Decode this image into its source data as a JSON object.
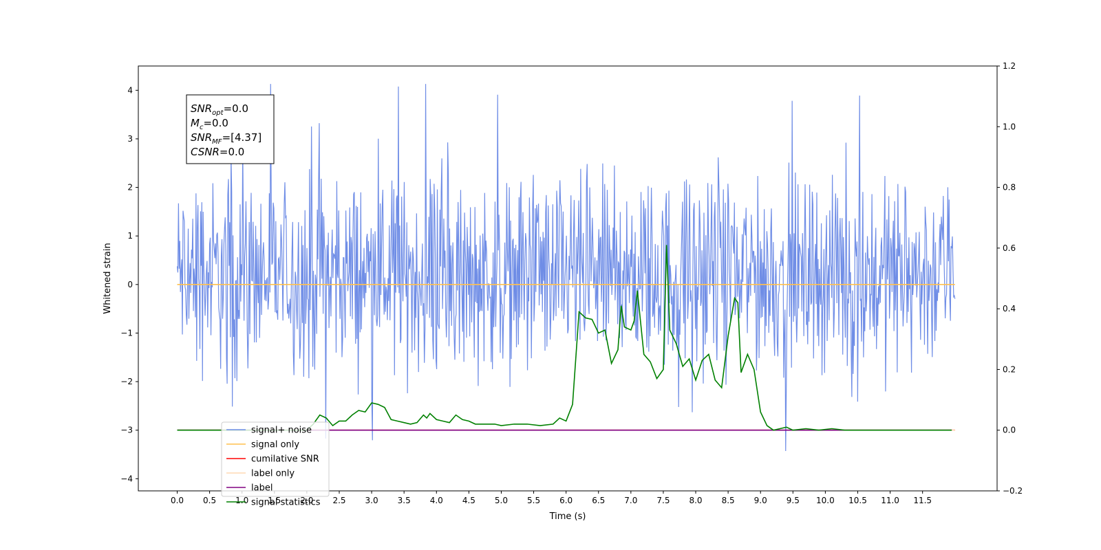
{
  "chart_data": {
    "type": "line",
    "xlabel": "Time (s)",
    "ylabel": "Whitened strain",
    "xlim": [
      -0.6,
      12.65
    ],
    "ylim": [
      -4.25,
      4.5
    ],
    "y2lim": [
      -0.2,
      1.2
    ],
    "grid": false,
    "legend_position": "lower-left",
    "xticks": [
      "0.0",
      "0.5",
      "1.0",
      "1.5",
      "2.0",
      "2.5",
      "3.0",
      "3.5",
      "4.0",
      "4.5",
      "5.0",
      "5.5",
      "6.0",
      "6.5",
      "7.0",
      "7.5",
      "8.0",
      "8.5",
      "9.0",
      "9.5",
      "10.0",
      "10.5",
      "11.0",
      "11.5"
    ],
    "yticks": [
      "4",
      "3",
      "2",
      "1",
      "0",
      "−1",
      "−2",
      "−3",
      "−4"
    ],
    "y2ticks": [
      "1.2",
      "1.0",
      "0.8",
      "0.6",
      "0.4",
      "0.2",
      "0.0",
      "−0.2"
    ],
    "annotation": {
      "lines": [
        {
          "base": "SNR",
          "sub": "opt",
          "value": "=0.0"
        },
        {
          "base": "M",
          "sub": "c",
          "value": "=0.0"
        },
        {
          "base": "SNR",
          "sub": "MF",
          "value": "=[4.37]"
        },
        {
          "base": "CSNR",
          "sub": "",
          "value": "=0.0"
        }
      ]
    },
    "series": [
      {
        "name": "signal+ noise",
        "color": "#6f8de6",
        "axis": "left",
        "x_range": [
          0.0,
          12.0
        ],
        "n_samples": 1200,
        "mean": 0.2,
        "spread": 0.95,
        "min": -3.85,
        "max": 4.13
      },
      {
        "name": "signal only",
        "color": "#ffc04d",
        "axis": "left",
        "x": [
          0.0,
          12.0
        ],
        "values": [
          0.0,
          0.0
        ]
      },
      {
        "name": "cumilative SNR",
        "color": "#ff0000",
        "axis": "right",
        "x": [
          0.0,
          12.0
        ],
        "values": [
          0.0,
          0.0
        ]
      },
      {
        "name": "label only",
        "color": "#ffd9b3",
        "axis": "right",
        "x": [
          0.0,
          12.0
        ],
        "values": [
          0.0,
          0.0
        ]
      },
      {
        "name": "label",
        "color": "#800080",
        "axis": "right",
        "x": [
          0.0,
          11.95
        ],
        "values": [
          0.0,
          0.0
        ]
      },
      {
        "name": "signal statistics",
        "color": "#008000",
        "axis": "right",
        "x": [
          0.0,
          2.0,
          2.1,
          2.2,
          2.3,
          2.4,
          2.5,
          2.6,
          2.7,
          2.8,
          2.9,
          3.0,
          3.1,
          3.2,
          3.3,
          3.4,
          3.5,
          3.6,
          3.7,
          3.8,
          3.85,
          3.9,
          4.0,
          4.1,
          4.2,
          4.3,
          4.4,
          4.5,
          4.6,
          4.7,
          4.8,
          4.9,
          5.0,
          5.2,
          5.4,
          5.6,
          5.8,
          5.9,
          6.0,
          6.1,
          6.2,
          6.3,
          6.4,
          6.5,
          6.6,
          6.7,
          6.8,
          6.85,
          6.9,
          7.0,
          7.05,
          7.1,
          7.2,
          7.3,
          7.4,
          7.5,
          7.55,
          7.6,
          7.7,
          7.8,
          7.9,
          8.0,
          8.1,
          8.2,
          8.3,
          8.4,
          8.5,
          8.6,
          8.65,
          8.7,
          8.8,
          8.9,
          9.0,
          9.1,
          9.2,
          9.3,
          9.4,
          9.5,
          9.7,
          9.9,
          10.1,
          10.3,
          10.5,
          11.0,
          11.5,
          11.95
        ],
        "values": [
          0.0,
          0.0,
          0.02,
          0.05,
          0.04,
          0.015,
          0.03,
          0.03,
          0.05,
          0.065,
          0.06,
          0.09,
          0.085,
          0.075,
          0.035,
          0.03,
          0.025,
          0.02,
          0.025,
          0.05,
          0.04,
          0.055,
          0.035,
          0.03,
          0.025,
          0.05,
          0.035,
          0.03,
          0.02,
          0.02,
          0.02,
          0.02,
          0.015,
          0.02,
          0.02,
          0.015,
          0.02,
          0.04,
          0.03,
          0.085,
          0.39,
          0.37,
          0.365,
          0.32,
          0.33,
          0.22,
          0.265,
          0.41,
          0.34,
          0.33,
          0.36,
          0.46,
          0.25,
          0.225,
          0.17,
          0.2,
          0.61,
          0.33,
          0.285,
          0.21,
          0.235,
          0.165,
          0.23,
          0.25,
          0.165,
          0.14,
          0.31,
          0.435,
          0.42,
          0.19,
          0.25,
          0.2,
          0.06,
          0.015,
          0.0,
          0.005,
          0.01,
          0.0,
          0.005,
          0.0,
          0.005,
          0.0,
          0.0,
          0.0,
          0.0,
          0.0
        ]
      }
    ]
  }
}
